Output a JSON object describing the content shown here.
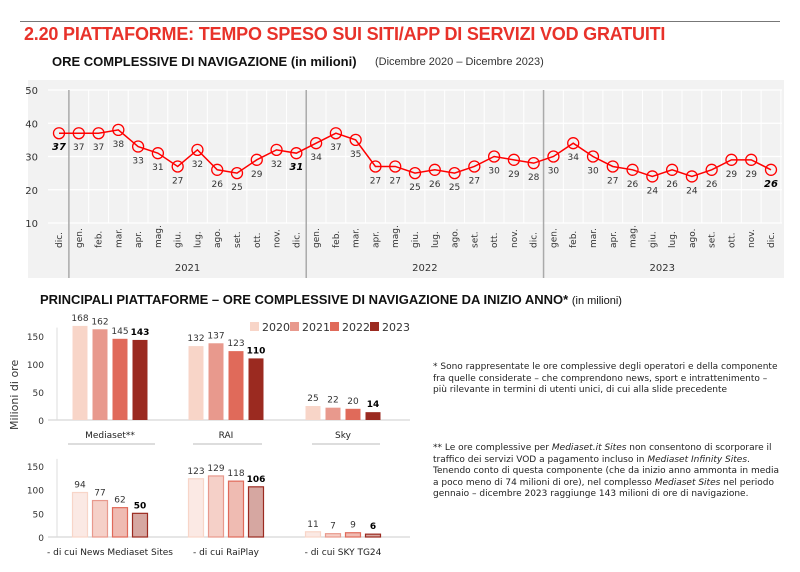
{
  "header": {
    "title": "2.20 PIATTAFORME: TEMPO SPESO SUI SITI/APP DI SERVIZI VOD GRATUITI",
    "line_subtitle": "ORE COMPLESSIVE DI NAVIGAZIONE (in milioni)",
    "line_period": "(Dicembre 2020 – Dicembre 2023)",
    "bar_subtitle": "PRINCIPALI PIATTAFORME – ORE COMPLESSIVE DI NAVIGAZIONE DA INIZIO ANNO*",
    "bar_subtitle_unit": "(in milioni)"
  },
  "notes": {
    "note1": "* Sono rappresentate le ore complessive degli operatori e della componente fra quelle considerate – che comprendono news, sport e intrattenimento – più rilevante in termini di utenti unici, di cui alla slide precedente",
    "note2_parts": [
      "** Le ore complessive per ",
      "Mediaset.it Sites",
      " non consentono di scorporare il traffico dei servizi VOD a pagamento incluso in ",
      "Mediaset Infinity Sites",
      ". Tenendo conto di questa componente (che da inizio anno ammonta in media a poco meno di 74 milioni di ore), nel complesso ",
      "Mediaset Sites",
      " nel periodo gennaio – dicembre 2023 raggiunge 143 milioni di ore di navigazione."
    ]
  },
  "chart_data": [
    {
      "type": "line",
      "title": "ORE COMPLESSIVE DI NAVIGAZIONE (in milioni)",
      "x": [
        "dic.",
        "gen.",
        "feb.",
        "mar.",
        "apr.",
        "mag.",
        "giu.",
        "lug.",
        "ago.",
        "set.",
        "ott.",
        "nov.",
        "dic.",
        "gen.",
        "feb.",
        "mar.",
        "apr.",
        "mag.",
        "giu.",
        "lug.",
        "ago.",
        "set.",
        "ott.",
        "nov.",
        "dic.",
        "gen.",
        "feb.",
        "mar.",
        "apr.",
        "mag.",
        "giu.",
        "lug.",
        "ago.",
        "set.",
        "ott.",
        "nov.",
        "dic."
      ],
      "year_groups": [
        {
          "label": "2021",
          "from": 1,
          "to": 12
        },
        {
          "label": "2022",
          "from": 13,
          "to": 24
        },
        {
          "label": "2023",
          "from": 25,
          "to": 36
        }
      ],
      "values": [
        37,
        37,
        37,
        38,
        33,
        31,
        27,
        32,
        26,
        25,
        29,
        32,
        31,
        34,
        37,
        35,
        27,
        27,
        25,
        26,
        25,
        27,
        30,
        29,
        28,
        30,
        34,
        30,
        27,
        26,
        24,
        26,
        24,
        26,
        29,
        29,
        26
      ],
      "highlighted_indices": [
        0,
        12,
        36
      ],
      "ylim": [
        10,
        50
      ],
      "yticks": [
        10,
        20,
        30,
        40,
        50
      ],
      "grid": true,
      "color": "#ff0000"
    },
    {
      "type": "bar",
      "ylabel": "Milioni di ore",
      "legend": [
        "2020",
        "2021",
        "2022",
        "2023"
      ],
      "legend_position": "top-right",
      "colors": [
        "#f8d5c8",
        "#e8998d",
        "#e06a5a",
        "#9b2a20"
      ],
      "yticks": [
        0,
        50,
        100,
        150
      ],
      "ylim": [
        0,
        170
      ],
      "categories": [
        "Mediaset**",
        "RAI",
        "Sky"
      ],
      "series": [
        {
          "name": "2020",
          "values": [
            168,
            132,
            25
          ]
        },
        {
          "name": "2021",
          "values": [
            162,
            137,
            22
          ]
        },
        {
          "name": "2022",
          "values": [
            145,
            123,
            20
          ]
        },
        {
          "name": "2023",
          "values": [
            143,
            110,
            14
          ]
        }
      ]
    },
    {
      "type": "bar",
      "colors": [
        "#fbe9e4",
        "#f5d0c8",
        "#efbbb2",
        "#d6a7a1"
      ],
      "border_colors": [
        "#f8d5c8",
        "#e8998d",
        "#e06a5a",
        "#9b2a20"
      ],
      "yticks": [
        0,
        50,
        100,
        150
      ],
      "ylim": [
        0,
        150
      ],
      "categories": [
        "- di cui News Mediaset Sites",
        "- di cui RaiPlay",
        "- di cui SKY TG24"
      ],
      "series": [
        {
          "name": "2020",
          "values": [
            94,
            123,
            11
          ]
        },
        {
          "name": "2021",
          "values": [
            77,
            129,
            7
          ]
        },
        {
          "name": "2022",
          "values": [
            62,
            118,
            9
          ]
        },
        {
          "name": "2023",
          "values": [
            50,
            106,
            6
          ]
        }
      ]
    }
  ]
}
